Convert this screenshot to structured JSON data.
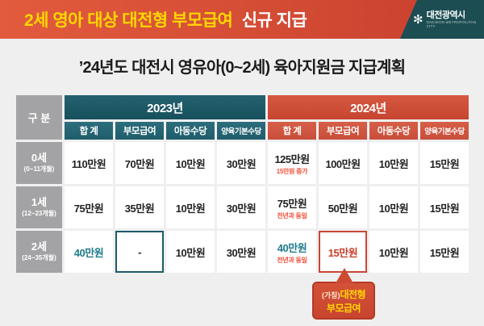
{
  "banner": {
    "title_highlight": "2세 영아 대상 대전형 부모급여",
    "title_rest": "신규 지급",
    "logo_symbol": "✻",
    "logo_text": "대전광역시",
    "logo_subtext": "DAEJEON METROPOLITAN CITY"
  },
  "page_title": "’24년도 대전시 영유아(0~2세) 육아지원금 지급계획",
  "table": {
    "corner_label": "구 분",
    "year_groups": [
      {
        "label": "2023년",
        "columns": [
          "합 계",
          "부모급여",
          "아동수당",
          "양육기본수당"
        ]
      },
      {
        "label": "2024년",
        "columns": [
          "합 계",
          "부모급여",
          "아동수당",
          "양육기본수당"
        ]
      }
    ],
    "rows": [
      {
        "age": "0세",
        "months": "(0~11개월)",
        "cells": [
          {
            "value": "110만원"
          },
          {
            "value": "70만원"
          },
          {
            "value": "10만원"
          },
          {
            "value": "30만원"
          },
          {
            "value": "125만원",
            "note": "15만원 증가"
          },
          {
            "value": "100만원"
          },
          {
            "value": "10만원"
          },
          {
            "value": "15만원"
          }
        ]
      },
      {
        "age": "1세",
        "months": "(12~23개월)",
        "cells": [
          {
            "value": "75만원"
          },
          {
            "value": "35만원"
          },
          {
            "value": "10만원"
          },
          {
            "value": "30만원"
          },
          {
            "value": "75만원",
            "note": "전년과 동일"
          },
          {
            "value": "50만원"
          },
          {
            "value": "10만원"
          },
          {
            "value": "15만원"
          }
        ]
      },
      {
        "age": "2세",
        "months": "(24~35개월)",
        "cells": [
          {
            "value": "40만원"
          },
          {
            "value": "-"
          },
          {
            "value": "10만원"
          },
          {
            "value": "30만원"
          },
          {
            "value": "40만원",
            "note": "전년과 동일"
          },
          {
            "value": "15만원"
          },
          {
            "value": "10만원"
          },
          {
            "value": "15만원"
          }
        ]
      }
    ]
  },
  "callout": {
    "prefix": "(가칭)",
    "line1": "대전형",
    "line2": "부모급여"
  },
  "colors": {
    "banner_bg": "#d85238",
    "teal_header": "#1d5b68",
    "orange_header": "#cf4e38",
    "gray_header": "#a3a3a5",
    "highlight_red": "#c83d2a",
    "highlight_teal": "#1e7b8b",
    "note_red": "#f4503a",
    "accent_yellow": "#ffd800"
  }
}
